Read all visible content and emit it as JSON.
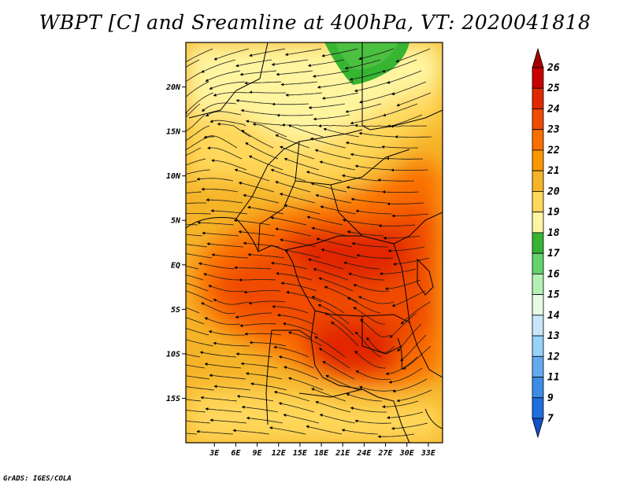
{
  "title": "WBPT [C] and Sreamline at 400hPa, VT: 2020041818",
  "credit": "GrADS: IGES/COLA",
  "map": {
    "variable": "wet-bulb potential temperature",
    "units": "C",
    "level_hpa": 400,
    "lon_range": [
      -1,
      35
    ],
    "lat_range": [
      -20,
      25
    ],
    "y_ticks": [
      {
        "lat": 20,
        "label": "20N"
      },
      {
        "lat": 15,
        "label": "15N"
      },
      {
        "lat": 10,
        "label": "10N"
      },
      {
        "lat": 5,
        "label": "5N"
      },
      {
        "lat": 0,
        "label": "EQ"
      },
      {
        "lat": -5,
        "label": "5S"
      },
      {
        "lat": -10,
        "label": "10S"
      },
      {
        "lat": -15,
        "label": "15S"
      }
    ],
    "x_ticks": [
      {
        "lon": 3,
        "label": "3E"
      },
      {
        "lon": 6,
        "label": "6E"
      },
      {
        "lon": 9,
        "label": "9E"
      },
      {
        "lon": 12,
        "label": "12E"
      },
      {
        "lon": 15,
        "label": "15E"
      },
      {
        "lon": 18,
        "label": "18E"
      },
      {
        "lon": 21,
        "label": "21E"
      },
      {
        "lon": 24,
        "label": "24E"
      },
      {
        "lon": 27,
        "label": "27E"
      },
      {
        "lon": 30,
        "label": "30E"
      },
      {
        "lon": 33,
        "label": "33E"
      }
    ]
  },
  "colorbar": {
    "labels": [
      "26",
      "25",
      "24",
      "23",
      "22",
      "21",
      "20",
      "19",
      "18",
      "17",
      "16",
      "15",
      "14",
      "13",
      "12",
      "11",
      "9",
      "7"
    ],
    "colors": [
      "#a50000",
      "#c80000",
      "#e12800",
      "#f04b00",
      "#fa6e00",
      "#fa9600",
      "#f5b428",
      "#ffd75a",
      "#fff5a0",
      "#37b432",
      "#64d26e",
      "#b4f0b4",
      "#e6fae6",
      "#c8e6fa",
      "#96d2fa",
      "#64aaf0",
      "#3c8ce6",
      "#1e6edc",
      "#1450c8"
    ]
  }
}
